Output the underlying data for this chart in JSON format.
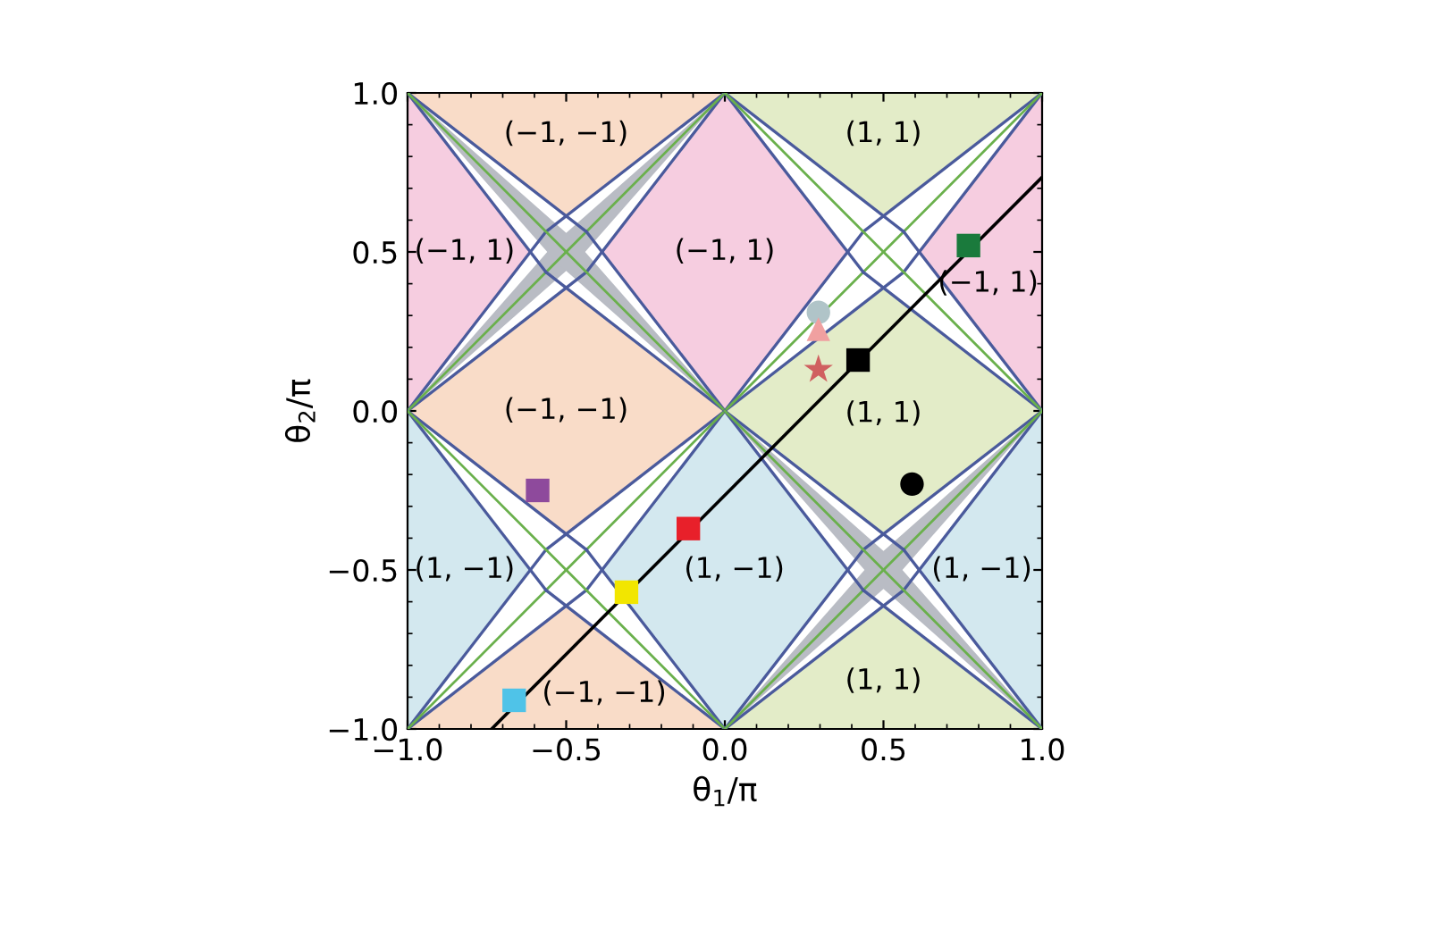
{
  "chart_data": {
    "type": "scatter",
    "xlabel": "θ$_{1}$/π",
    "ylabel": "θ$_{2}$/π",
    "xlim": [
      -1.0,
      1.0
    ],
    "ylim": [
      -1.0,
      1.0
    ],
    "xticks": [
      {
        "value": -1.0,
        "label": "−1.0"
      },
      {
        "value": -0.5,
        "label": "−0.5"
      },
      {
        "value": 0.0,
        "label": "0.0"
      },
      {
        "value": 0.5,
        "label": "0.5"
      },
      {
        "value": 1.0,
        "label": "1.0"
      }
    ],
    "yticks": [
      {
        "value": -1.0,
        "label": "−1.0"
      },
      {
        "value": -0.5,
        "label": "−0.5"
      },
      {
        "value": 0.0,
        "label": "0.0"
      },
      {
        "value": 0.5,
        "label": "0.5"
      },
      {
        "value": 1.0,
        "label": "1.0"
      }
    ],
    "grid": false,
    "legend": false,
    "series": [
      {
        "type": "line",
        "color": "#000000",
        "marker": "none",
        "line_style": "solid",
        "x": [
          -0.735,
          1.0
        ],
        "values": [
          -1.0,
          0.735
        ]
      },
      {
        "color": "#4fc3e8",
        "marker": "square",
        "x": [
          -0.664
        ],
        "values": [
          -0.91
        ]
      },
      {
        "color": "#f2e600",
        "marker": "square",
        "x": [
          -0.31
        ],
        "values": [
          -0.57
        ]
      },
      {
        "color": "#e8202a",
        "marker": "square",
        "x": [
          -0.115
        ],
        "values": [
          -0.37
        ]
      },
      {
        "color": "#8e4a9c",
        "marker": "square",
        "x": [
          -0.59
        ],
        "values": [
          -0.25
        ]
      },
      {
        "color": "#000000",
        "marker": "square",
        "x": [
          0.42
        ],
        "values": [
          0.16
        ]
      },
      {
        "color": "#1a7a3c",
        "marker": "square",
        "x": [
          0.768
        ],
        "values": [
          0.52
        ]
      },
      {
        "color": "#000000",
        "marker": "circle",
        "x": [
          0.59
        ],
        "values": [
          -0.23
        ]
      },
      {
        "color": "#b0c4c8",
        "marker": "circle",
        "x": [
          0.295
        ],
        "values": [
          0.31
        ]
      },
      {
        "color": "#f0a0a0",
        "marker": "triangle",
        "x": [
          0.295
        ],
        "values": [
          0.257
        ]
      },
      {
        "color": "#d06060",
        "marker": "star",
        "x": [
          0.295
        ],
        "values": [
          0.13
        ]
      }
    ],
    "annotations": [
      "(−1, −1)",
      "(1, 1)",
      "(−1, 1)",
      "(−1, 1)",
      "(−1, 1)",
      "(−1, −1)",
      "(1, 1)",
      "(1, −1)",
      "(1, −1)",
      "(1, −1)",
      "(−1, −1)",
      "(1, 1)"
    ]
  }
}
